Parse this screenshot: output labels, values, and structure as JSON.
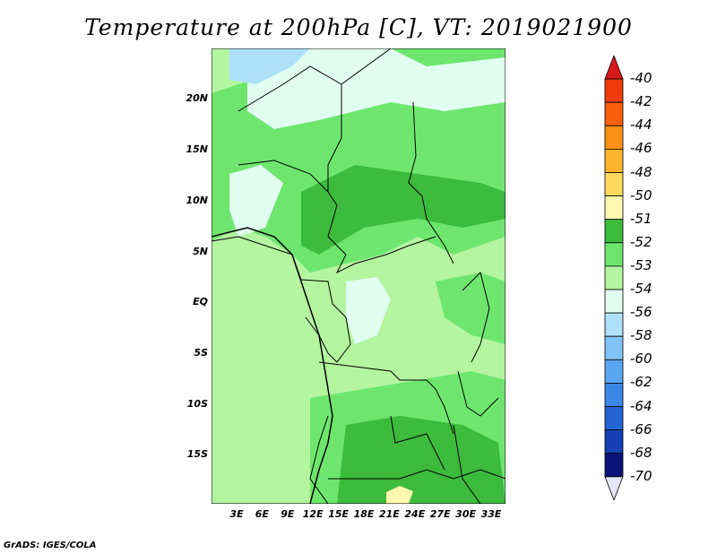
{
  "title": "Temperature at 200hPa [C], VT: 2019021900",
  "credit": "GrADS: IGES/COLA",
  "lat_labels": [
    "20N",
    "15N",
    "10N",
    "5N",
    "EQ",
    "5S",
    "10S",
    "15S"
  ],
  "lon_labels": [
    "3E",
    "6E",
    "9E",
    "12E",
    "15E",
    "18E",
    "21E",
    "24E",
    "27E",
    "30E",
    "33E"
  ],
  "colorbar": {
    "labels": [
      "-40",
      "-42",
      "-44",
      "-46",
      "-48",
      "-50",
      "-51",
      "-52",
      "-53",
      "-54",
      "-56",
      "-58",
      "-60",
      "-62",
      "-64",
      "-66",
      "-68",
      "-70"
    ],
    "colors": [
      "#d7191c",
      "#f03b0c",
      "#f65e0a",
      "#f89113",
      "#fbb42b",
      "#fdd85f",
      "#fff8b0",
      "#3cbb3c",
      "#6ee66e",
      "#b4f5a0",
      "#e0fff0",
      "#aee0fa",
      "#82c3f5",
      "#5aa5f0",
      "#3c87e6",
      "#2364d2",
      "#1541b4",
      "#0a1478",
      "#e6e6fa"
    ]
  },
  "colors": {
    "light_green": "#b4f5a0",
    "green": "#6ee66e",
    "dark_green": "#3cbb3c",
    "pale_cyan": "#e0fff0",
    "light_blue": "#aee0fa",
    "pale_yellow": "#fff8b0"
  }
}
